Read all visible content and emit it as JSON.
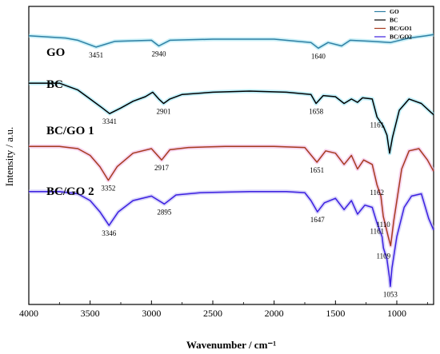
{
  "chart_data": {
    "type": "line",
    "title": "",
    "xlabel": "Wavenumber / cm⁻¹",
    "ylabel": "Intensity / a.u.",
    "xlim": [
      4000,
      700
    ],
    "x_reversed": true,
    "x_ticks": [
      "4000",
      "3500",
      "3000",
      "2500",
      "2000",
      "1500",
      "1000"
    ],
    "y_ticks_shown": false,
    "grid": false,
    "legend_position": "top-right",
    "legend": [
      {
        "name": "GO",
        "color": "#2e7fa3"
      },
      {
        "name": "BC",
        "color": "#000000"
      },
      {
        "name": "BC/GO1",
        "color": "#a63a1e"
      },
      {
        "name": "BC/GO2",
        "color": "#3b1fe0"
      }
    ],
    "series": [
      {
        "name": "GO",
        "plot_label": "GO",
        "color": "#2e7fa3",
        "glow": "#9fe3f2",
        "baseline": 9.5,
        "points": [
          [
            4000,
            9.5
          ],
          [
            3700,
            9.4
          ],
          [
            3600,
            9.3
          ],
          [
            3451,
            9.0
          ],
          [
            3300,
            9.25
          ],
          [
            3000,
            9.3
          ],
          [
            2940,
            9.05
          ],
          [
            2850,
            9.3
          ],
          [
            2500,
            9.35
          ],
          [
            2000,
            9.35
          ],
          [
            1700,
            9.2
          ],
          [
            1640,
            8.95
          ],
          [
            1560,
            9.2
          ],
          [
            1450,
            9.05
          ],
          [
            1380,
            9.3
          ],
          [
            1200,
            9.25
          ],
          [
            1050,
            9.2
          ],
          [
            900,
            9.4
          ],
          [
            760,
            9.5
          ],
          [
            700,
            9.55
          ]
        ],
        "peaks": [
          {
            "x": 3451,
            "y": 9.0,
            "label": "3451"
          },
          {
            "x": 2940,
            "y": 9.05,
            "label": "2940"
          },
          {
            "x": 1640,
            "y": 8.95,
            "label": "1640"
          }
        ]
      },
      {
        "name": "BC",
        "plot_label": "BC",
        "color": "#000000",
        "glow": "#8fe4f5",
        "baseline": 7.5,
        "points": [
          [
            4000,
            7.4
          ],
          [
            3750,
            7.4
          ],
          [
            3700,
            7.3
          ],
          [
            3600,
            7.1
          ],
          [
            3500,
            6.7
          ],
          [
            3400,
            6.3
          ],
          [
            3341,
            6.05
          ],
          [
            3250,
            6.3
          ],
          [
            3150,
            6.6
          ],
          [
            3050,
            6.8
          ],
          [
            2990,
            7.0
          ],
          [
            2940,
            6.7
          ],
          [
            2901,
            6.5
          ],
          [
            2850,
            6.7
          ],
          [
            2750,
            6.9
          ],
          [
            2500,
            7.0
          ],
          [
            2200,
            7.05
          ],
          [
            1900,
            7.0
          ],
          [
            1700,
            6.9
          ],
          [
            1658,
            6.5
          ],
          [
            1600,
            6.85
          ],
          [
            1500,
            6.8
          ],
          [
            1430,
            6.5
          ],
          [
            1370,
            6.7
          ],
          [
            1320,
            6.55
          ],
          [
            1280,
            6.75
          ],
          [
            1200,
            6.7
          ],
          [
            1161,
            5.9
          ],
          [
            1110,
            5.5
          ],
          [
            1080,
            5.1
          ],
          [
            1059,
            4.3
          ],
          [
            1035,
            5.0
          ],
          [
            980,
            6.2
          ],
          [
            900,
            6.7
          ],
          [
            800,
            6.5
          ],
          [
            720,
            6.1
          ],
          [
            700,
            6.0
          ]
        ],
        "peaks": [
          {
            "x": 3341,
            "y": 6.05,
            "label": "3341"
          },
          {
            "x": 2901,
            "y": 6.5,
            "label": "2901"
          },
          {
            "x": 1658,
            "y": 6.5,
            "label": "1658"
          },
          {
            "x": 1161,
            "y": 5.9,
            "label": "1161"
          }
        ]
      },
      {
        "name": "BC/GO1",
        "plot_label": "BC/GO 1",
        "color": "#a63a1e",
        "glow": "#f1b2e1",
        "baseline": 4.6,
        "points": [
          [
            4000,
            4.6
          ],
          [
            3750,
            4.6
          ],
          [
            3600,
            4.5
          ],
          [
            3500,
            4.2
          ],
          [
            3420,
            3.7
          ],
          [
            3352,
            3.1
          ],
          [
            3280,
            3.7
          ],
          [
            3150,
            4.3
          ],
          [
            3000,
            4.5
          ],
          [
            2917,
            4.0
          ],
          [
            2850,
            4.45
          ],
          [
            2700,
            4.55
          ],
          [
            2400,
            4.6
          ],
          [
            2000,
            4.6
          ],
          [
            1750,
            4.55
          ],
          [
            1651,
            3.9
          ],
          [
            1580,
            4.4
          ],
          [
            1500,
            4.3
          ],
          [
            1430,
            3.8
          ],
          [
            1370,
            4.2
          ],
          [
            1320,
            3.6
          ],
          [
            1270,
            4.0
          ],
          [
            1200,
            3.8
          ],
          [
            1162,
            2.9
          ],
          [
            1130,
            2.4
          ],
          [
            1110,
            1.5
          ],
          [
            1070,
            0.6
          ],
          [
            1050,
            0.2
          ],
          [
            1025,
            1.3
          ],
          [
            960,
            3.6
          ],
          [
            900,
            4.4
          ],
          [
            820,
            4.5
          ],
          [
            750,
            4.0
          ],
          [
            700,
            3.5
          ]
        ],
        "peaks": [
          {
            "x": 3352,
            "y": 3.1,
            "label": "3352"
          },
          {
            "x": 2917,
            "y": 4.0,
            "label": "2917"
          },
          {
            "x": 1651,
            "y": 3.9,
            "label": "1651"
          },
          {
            "x": 1162,
            "y": 2.9,
            "label": "1162"
          },
          {
            "x": 1110,
            "y": 1.5,
            "label": "1110"
          }
        ]
      },
      {
        "name": "BC/GO2",
        "plot_label": "BC/GO 2",
        "color": "#3b1fe0",
        "glow": "#b9b4f5",
        "baseline": 2.6,
        "points": [
          [
            4000,
            2.6
          ],
          [
            3750,
            2.6
          ],
          [
            3600,
            2.5
          ],
          [
            3500,
            2.2
          ],
          [
            3420,
            1.7
          ],
          [
            3346,
            1.1
          ],
          [
            3270,
            1.7
          ],
          [
            3150,
            2.2
          ],
          [
            3000,
            2.4
          ],
          [
            2895,
            2.05
          ],
          [
            2800,
            2.45
          ],
          [
            2600,
            2.55
          ],
          [
            2200,
            2.6
          ],
          [
            1900,
            2.6
          ],
          [
            1750,
            2.55
          ],
          [
            1700,
            2.2
          ],
          [
            1647,
            1.7
          ],
          [
            1590,
            2.1
          ],
          [
            1500,
            2.3
          ],
          [
            1430,
            1.8
          ],
          [
            1370,
            2.2
          ],
          [
            1320,
            1.6
          ],
          [
            1260,
            2.0
          ],
          [
            1200,
            1.9
          ],
          [
            1161,
            1.2
          ],
          [
            1120,
            0.6
          ],
          [
            1109,
            0.1
          ],
          [
            1080,
            -0.4
          ],
          [
            1060,
            -1.2
          ],
          [
            1053,
            -1.6
          ],
          [
            1040,
            -0.8
          ],
          [
            1000,
            0.6
          ],
          [
            940,
            1.9
          ],
          [
            880,
            2.4
          ],
          [
            800,
            2.5
          ],
          [
            740,
            1.4
          ],
          [
            700,
            0.9
          ]
        ],
        "peaks": [
          {
            "x": 3346,
            "y": 1.1,
            "label": "3346"
          },
          {
            "x": 2895,
            "y": 2.05,
            "label": "2895"
          },
          {
            "x": 1647,
            "y": 1.7,
            "label": "1647"
          },
          {
            "x": 1161,
            "y": 1.2,
            "label": "1161"
          },
          {
            "x": 1109,
            "y": 0.1,
            "label": "1109"
          },
          {
            "x": 1053,
            "y": -1.6,
            "label": "1053"
          }
        ]
      }
    ]
  }
}
